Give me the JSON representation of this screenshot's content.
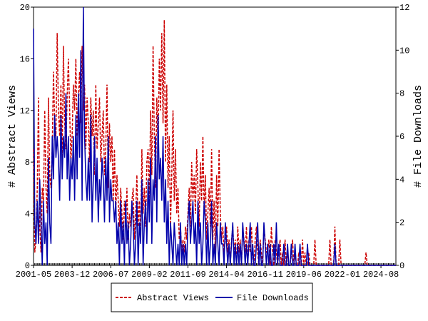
{
  "chart_data": {
    "type": "line",
    "x": [
      "2001-05",
      "2001-06",
      "2001-07",
      "2001-08",
      "2001-09",
      "2001-10",
      "2001-11",
      "2001-12",
      "2002-01",
      "2002-02",
      "2002-03",
      "2002-04",
      "2002-05",
      "2002-06",
      "2002-07",
      "2002-08",
      "2002-09",
      "2002-10",
      "2002-11",
      "2002-12",
      "2003-01",
      "2003-02",
      "2003-03",
      "2003-04",
      "2003-05",
      "2003-06",
      "2003-07",
      "2003-08",
      "2003-09",
      "2003-10",
      "2003-11",
      "2003-12",
      "2004-01",
      "2004-02",
      "2004-03",
      "2004-04",
      "2004-05",
      "2004-06",
      "2004-07",
      "2004-08",
      "2004-09",
      "2004-10",
      "2004-11",
      "2004-12",
      "2005-01",
      "2005-02",
      "2005-03",
      "2005-04",
      "2005-05",
      "2005-06",
      "2005-07",
      "2005-08",
      "2005-09",
      "2005-10",
      "2005-11",
      "2005-12",
      "2006-01",
      "2006-02",
      "2006-03",
      "2006-04",
      "2006-05",
      "2006-06",
      "2006-07",
      "2006-08",
      "2006-09",
      "2006-10",
      "2006-11",
      "2006-12",
      "2007-01",
      "2007-02",
      "2007-03",
      "2007-04",
      "2007-05",
      "2007-06",
      "2007-07",
      "2007-08",
      "2007-09",
      "2007-10",
      "2007-11",
      "2007-12",
      "2008-01",
      "2008-02",
      "2008-03",
      "2008-04",
      "2008-05",
      "2008-06",
      "2008-07",
      "2008-08",
      "2008-09",
      "2008-10",
      "2008-11",
      "2008-12",
      "2009-01",
      "2009-02",
      "2009-03",
      "2009-04",
      "2009-05",
      "2009-06",
      "2009-07",
      "2009-08",
      "2009-09",
      "2009-10",
      "2009-11",
      "2009-12",
      "2010-01",
      "2010-02",
      "2010-03",
      "2010-04",
      "2010-05",
      "2010-06",
      "2010-07",
      "2010-08",
      "2010-09",
      "2010-10",
      "2010-11",
      "2010-12",
      "2011-01",
      "2011-02",
      "2011-03",
      "2011-04",
      "2011-05",
      "2011-06",
      "2011-07",
      "2011-08",
      "2011-09",
      "2011-10",
      "2011-11",
      "2011-12",
      "2012-01",
      "2012-02",
      "2012-03",
      "2012-04",
      "2012-05",
      "2012-06",
      "2012-07",
      "2012-08",
      "2012-09",
      "2012-10",
      "2012-11",
      "2012-12",
      "2013-01",
      "2013-02",
      "2013-03",
      "2013-04",
      "2013-05",
      "2013-06",
      "2013-07",
      "2013-08",
      "2013-09",
      "2013-10",
      "2013-11",
      "2013-12",
      "2014-01",
      "2014-02",
      "2014-03",
      "2014-04",
      "2014-05",
      "2014-06",
      "2014-07",
      "2014-08",
      "2014-09",
      "2014-10",
      "2014-11",
      "2014-12",
      "2015-01",
      "2015-02",
      "2015-03",
      "2015-04",
      "2015-05",
      "2015-06",
      "2015-07",
      "2015-08",
      "2015-09",
      "2015-10",
      "2015-11",
      "2015-12",
      "2016-01",
      "2016-02",
      "2016-03",
      "2016-04",
      "2016-05",
      "2016-06",
      "2016-07",
      "2016-08",
      "2016-09",
      "2016-10",
      "2016-11",
      "2016-12",
      "2017-01",
      "2017-02",
      "2017-03",
      "2017-04",
      "2017-05",
      "2017-06",
      "2017-07",
      "2017-08",
      "2017-09",
      "2017-10",
      "2017-11",
      "2017-12",
      "2018-01",
      "2018-02",
      "2018-03",
      "2018-04",
      "2018-05",
      "2018-06",
      "2018-07",
      "2018-08",
      "2018-09",
      "2018-10",
      "2018-11",
      "2018-12",
      "2019-01",
      "2019-02",
      "2019-03",
      "2019-04",
      "2019-05",
      "2019-06",
      "2019-07",
      "2019-08",
      "2019-09",
      "2019-10",
      "2019-11",
      "2019-12",
      "2020-01",
      "2020-02",
      "2020-03",
      "2020-04",
      "2020-05",
      "2020-06",
      "2020-07",
      "2020-08",
      "2020-09",
      "2020-10",
      "2020-11",
      "2020-12",
      "2021-01",
      "2021-02",
      "2021-03",
      "2021-04",
      "2021-05",
      "2021-06",
      "2021-07",
      "2021-08",
      "2021-09",
      "2021-10",
      "2021-11",
      "2021-12",
      "2022-01",
      "2022-02",
      "2022-03",
      "2022-04",
      "2022-05",
      "2022-06",
      "2022-07",
      "2022-08",
      "2022-09",
      "2022-10",
      "2022-11",
      "2022-12",
      "2023-01",
      "2023-02",
      "2023-03",
      "2023-04",
      "2023-05",
      "2023-06",
      "2023-07",
      "2023-08",
      "2023-09",
      "2023-10",
      "2023-11",
      "2023-12",
      "2024-01",
      "2024-02",
      "2024-03",
      "2024-04",
      "2024-05",
      "2024-06",
      "2024-07",
      "2024-08",
      "2024-09",
      "2024-10",
      "2024-11",
      "2024-12",
      "2025-01",
      "2025-02",
      "2025-03",
      "2025-04",
      "2025-05",
      "2025-06",
      "2025-07",
      "2025-08"
    ],
    "xticks": [
      "2001-05",
      "2003-12",
      "2006-07",
      "2009-02",
      "2011-09",
      "2014-04",
      "2016-11",
      "2019-06",
      "2022-01",
      "2024-08"
    ],
    "ylabel": "# Abstract Views",
    "y2label": "# File Downloads",
    "ylim": [
      0,
      20
    ],
    "yticks": [
      0,
      4,
      8,
      12,
      16,
      20
    ],
    "y2lim": [
      0,
      12
    ],
    "y2ticks": [
      0,
      2,
      4,
      6,
      8,
      10,
      12
    ],
    "series": [
      {
        "name": "Abstract Views",
        "color": "#cc0000",
        "dash": true,
        "values": [
          9,
          1,
          2,
          6,
          13,
          3,
          1,
          6,
          5,
          12,
          6,
          4,
          13,
          7,
          6,
          9,
          15,
          11,
          10,
          18,
          12,
          10,
          14,
          8,
          17,
          11,
          9,
          13,
          16,
          12,
          8,
          10,
          14,
          12,
          16,
          10,
          13,
          15,
          11,
          17,
          12,
          14,
          9,
          13,
          11,
          8,
          13,
          10,
          12,
          7,
          14,
          9,
          11,
          13,
          8,
          10,
          12,
          7,
          9,
          14,
          6,
          11,
          8,
          10,
          5,
          9,
          4,
          7,
          5,
          3,
          6,
          4,
          2,
          5,
          3,
          6,
          2,
          4,
          3,
          5,
          6,
          2,
          4,
          7,
          3,
          5,
          2,
          9,
          4,
          6,
          3,
          8,
          9,
          5,
          12,
          7,
          17,
          10,
          6,
          13,
          9,
          16,
          12,
          18,
          11,
          19,
          8,
          14,
          6,
          10,
          3,
          7,
          12,
          5,
          9,
          4,
          6,
          2,
          3,
          1,
          2,
          1,
          3,
          2,
          4,
          6,
          3,
          8,
          5,
          7,
          4,
          9,
          6,
          3,
          8,
          5,
          10,
          4,
          7,
          2,
          4,
          6,
          3,
          9,
          2,
          5,
          1,
          7,
          3,
          9,
          4,
          2,
          3,
          1,
          2,
          3,
          1,
          2,
          0,
          2,
          3,
          1,
          2,
          0,
          3,
          1,
          2,
          0,
          3,
          2,
          1,
          3,
          0,
          2,
          1,
          3,
          1,
          0,
          2,
          3,
          1,
          0,
          2,
          1,
          0,
          3,
          2,
          1,
          1,
          2,
          0,
          3,
          1,
          0,
          2,
          1,
          0,
          1,
          2,
          0,
          1,
          0,
          2,
          0,
          1,
          0,
          0,
          1,
          2,
          0,
          1,
          0,
          0,
          1,
          0,
          0,
          2,
          0,
          1,
          0,
          0,
          1,
          0,
          0,
          0,
          0,
          2,
          0,
          0,
          0,
          0,
          0,
          0,
          0,
          0,
          0,
          0,
          0,
          2,
          0,
          0,
          0,
          3,
          0,
          0,
          0,
          2,
          0,
          0,
          0,
          0,
          0,
          0,
          0,
          0,
          0,
          0,
          0,
          0,
          0,
          0,
          0,
          0,
          0,
          0,
          0,
          0,
          1,
          0,
          0,
          0,
          0,
          0,
          0,
          0,
          0,
          0,
          0,
          0,
          0,
          0,
          0,
          0,
          0,
          0,
          0,
          0,
          0,
          0,
          0,
          0,
          0
        ]
      },
      {
        "name": "File Downloads",
        "color": "#0000aa",
        "dash": false,
        "axis": "y2",
        "values": [
          11,
          2,
          1,
          3,
          1,
          4,
          2,
          0,
          3,
          1,
          2,
          0,
          5,
          2,
          1,
          6,
          4,
          7,
          5,
          6,
          5,
          3,
          7,
          4,
          6,
          5,
          8,
          4,
          6,
          3,
          5,
          4,
          6,
          3,
          7,
          4,
          8,
          5,
          10,
          3,
          12,
          6,
          4,
          3,
          5,
          3,
          7,
          2,
          4,
          6,
          3,
          5,
          2,
          4,
          3,
          5,
          4,
          2,
          5,
          3,
          6,
          2,
          4,
          3,
          3,
          2,
          3,
          1,
          2,
          0,
          3,
          1,
          2,
          0,
          3,
          1,
          2,
          0,
          1,
          3,
          2,
          0,
          1,
          3,
          0,
          2,
          1,
          4,
          0,
          2,
          3,
          1,
          4,
          2,
          5,
          1,
          4,
          3,
          6,
          2,
          7,
          4,
          5,
          3,
          6,
          2,
          4,
          1,
          3,
          0,
          2,
          1,
          0,
          2,
          1,
          0,
          1,
          0,
          2,
          0,
          1,
          0,
          1,
          0,
          2,
          3,
          1,
          2,
          3,
          1,
          2,
          0,
          3,
          1,
          2,
          0,
          1,
          3,
          2,
          0,
          2,
          0,
          1,
          3,
          0,
          1,
          0,
          2,
          1,
          0,
          2,
          1,
          1,
          0,
          2,
          1,
          0,
          1,
          0,
          1,
          2,
          0,
          1,
          0,
          1,
          0,
          1,
          0,
          2,
          1,
          0,
          1,
          0,
          1,
          2,
          0,
          1,
          0,
          0,
          1,
          2,
          0,
          1,
          0,
          0,
          2,
          1,
          0,
          1,
          0,
          1,
          0,
          0,
          1,
          0,
          2,
          0,
          1,
          0,
          0,
          0,
          1,
          0,
          0,
          1,
          0,
          0,
          1,
          0,
          0,
          1,
          0,
          0,
          0,
          1,
          0,
          0,
          0,
          0,
          0,
          1,
          0,
          0,
          0,
          0,
          0,
          0,
          0,
          0,
          0,
          0,
          0,
          0,
          0,
          0,
          0,
          0,
          0,
          0,
          0,
          0,
          0,
          1,
          0,
          0,
          0,
          0,
          0,
          0,
          0,
          0,
          0,
          0,
          0,
          0,
          0,
          0,
          0,
          0,
          0,
          0,
          0,
          0,
          0,
          0,
          0,
          0,
          0,
          0,
          0,
          0,
          0,
          0,
          0,
          0,
          0,
          0,
          0,
          0,
          0,
          0,
          0,
          0,
          0,
          0,
          0,
          0,
          0,
          0,
          0,
          0,
          0
        ]
      }
    ]
  }
}
